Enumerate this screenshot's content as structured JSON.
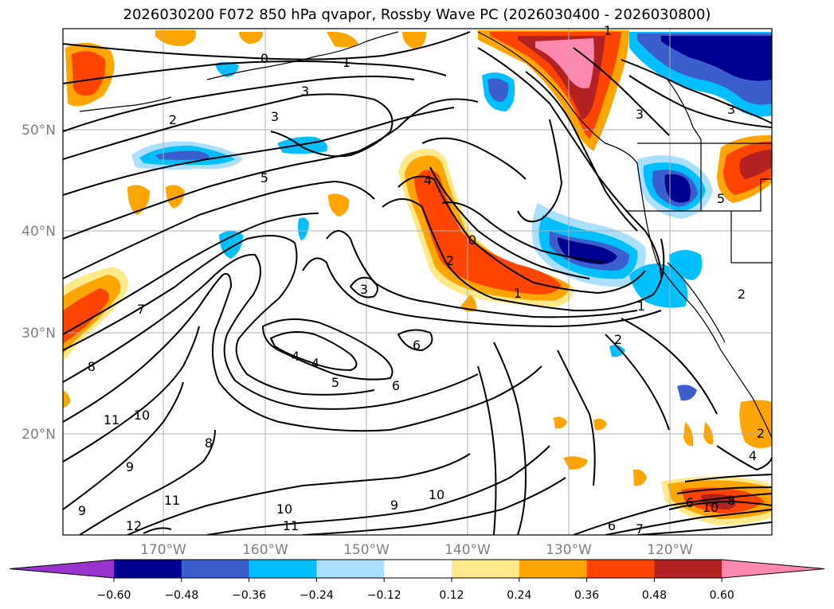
{
  "title": "2026030200 F072 850 hPa qvapor, Rossby Wave PC (2026030400 - 2026030800)",
  "map": {
    "lat_labels": [
      "50°N",
      "40°N",
      "30°N",
      "20°N"
    ],
    "lon_labels": [
      "170°W",
      "160°W",
      "150°W",
      "140°W",
      "130°W",
      "120°W"
    ],
    "contour_labels": [
      "0",
      "1",
      "3",
      "2",
      "3",
      "5",
      "4",
      "2",
      "0",
      "1",
      "7",
      "8",
      "3",
      "4",
      "4",
      "5",
      "6",
      "6",
      "11",
      "10",
      "9",
      "8",
      "9",
      "11",
      "10",
      "11",
      "12",
      "9",
      "10",
      "2",
      "3",
      "3",
      "1",
      "5",
      "2",
      "1",
      "2",
      "4",
      "6",
      "7",
      "10",
      "8",
      "6"
    ],
    "shading_colors": {
      "strong_positive": "#ff88b0",
      "dark_red": "#b22222",
      "red_orange": "#ff4400",
      "orange": "#ffa500",
      "light_yellow": "#ffe98a",
      "light_blue": "#aadfff",
      "cyan_blue": "#00bfff",
      "medium_blue": "#3a5fcd",
      "navy": "#000090",
      "purple": "#9a32cd"
    }
  },
  "colorbar": {
    "ticks": [
      "−0.60",
      "−0.48",
      "−0.36",
      "−0.24",
      "−0.12",
      "0.12",
      "0.24",
      "0.36",
      "0.48",
      "0.60"
    ],
    "colors": [
      "#9a32cd",
      "#000090",
      "#3a5fcd",
      "#00bfff",
      "#aadfff",
      "#ffffff",
      "#ffe98a",
      "#ffa500",
      "#ff4400",
      "#b22222",
      "#ff88b0"
    ]
  }
}
